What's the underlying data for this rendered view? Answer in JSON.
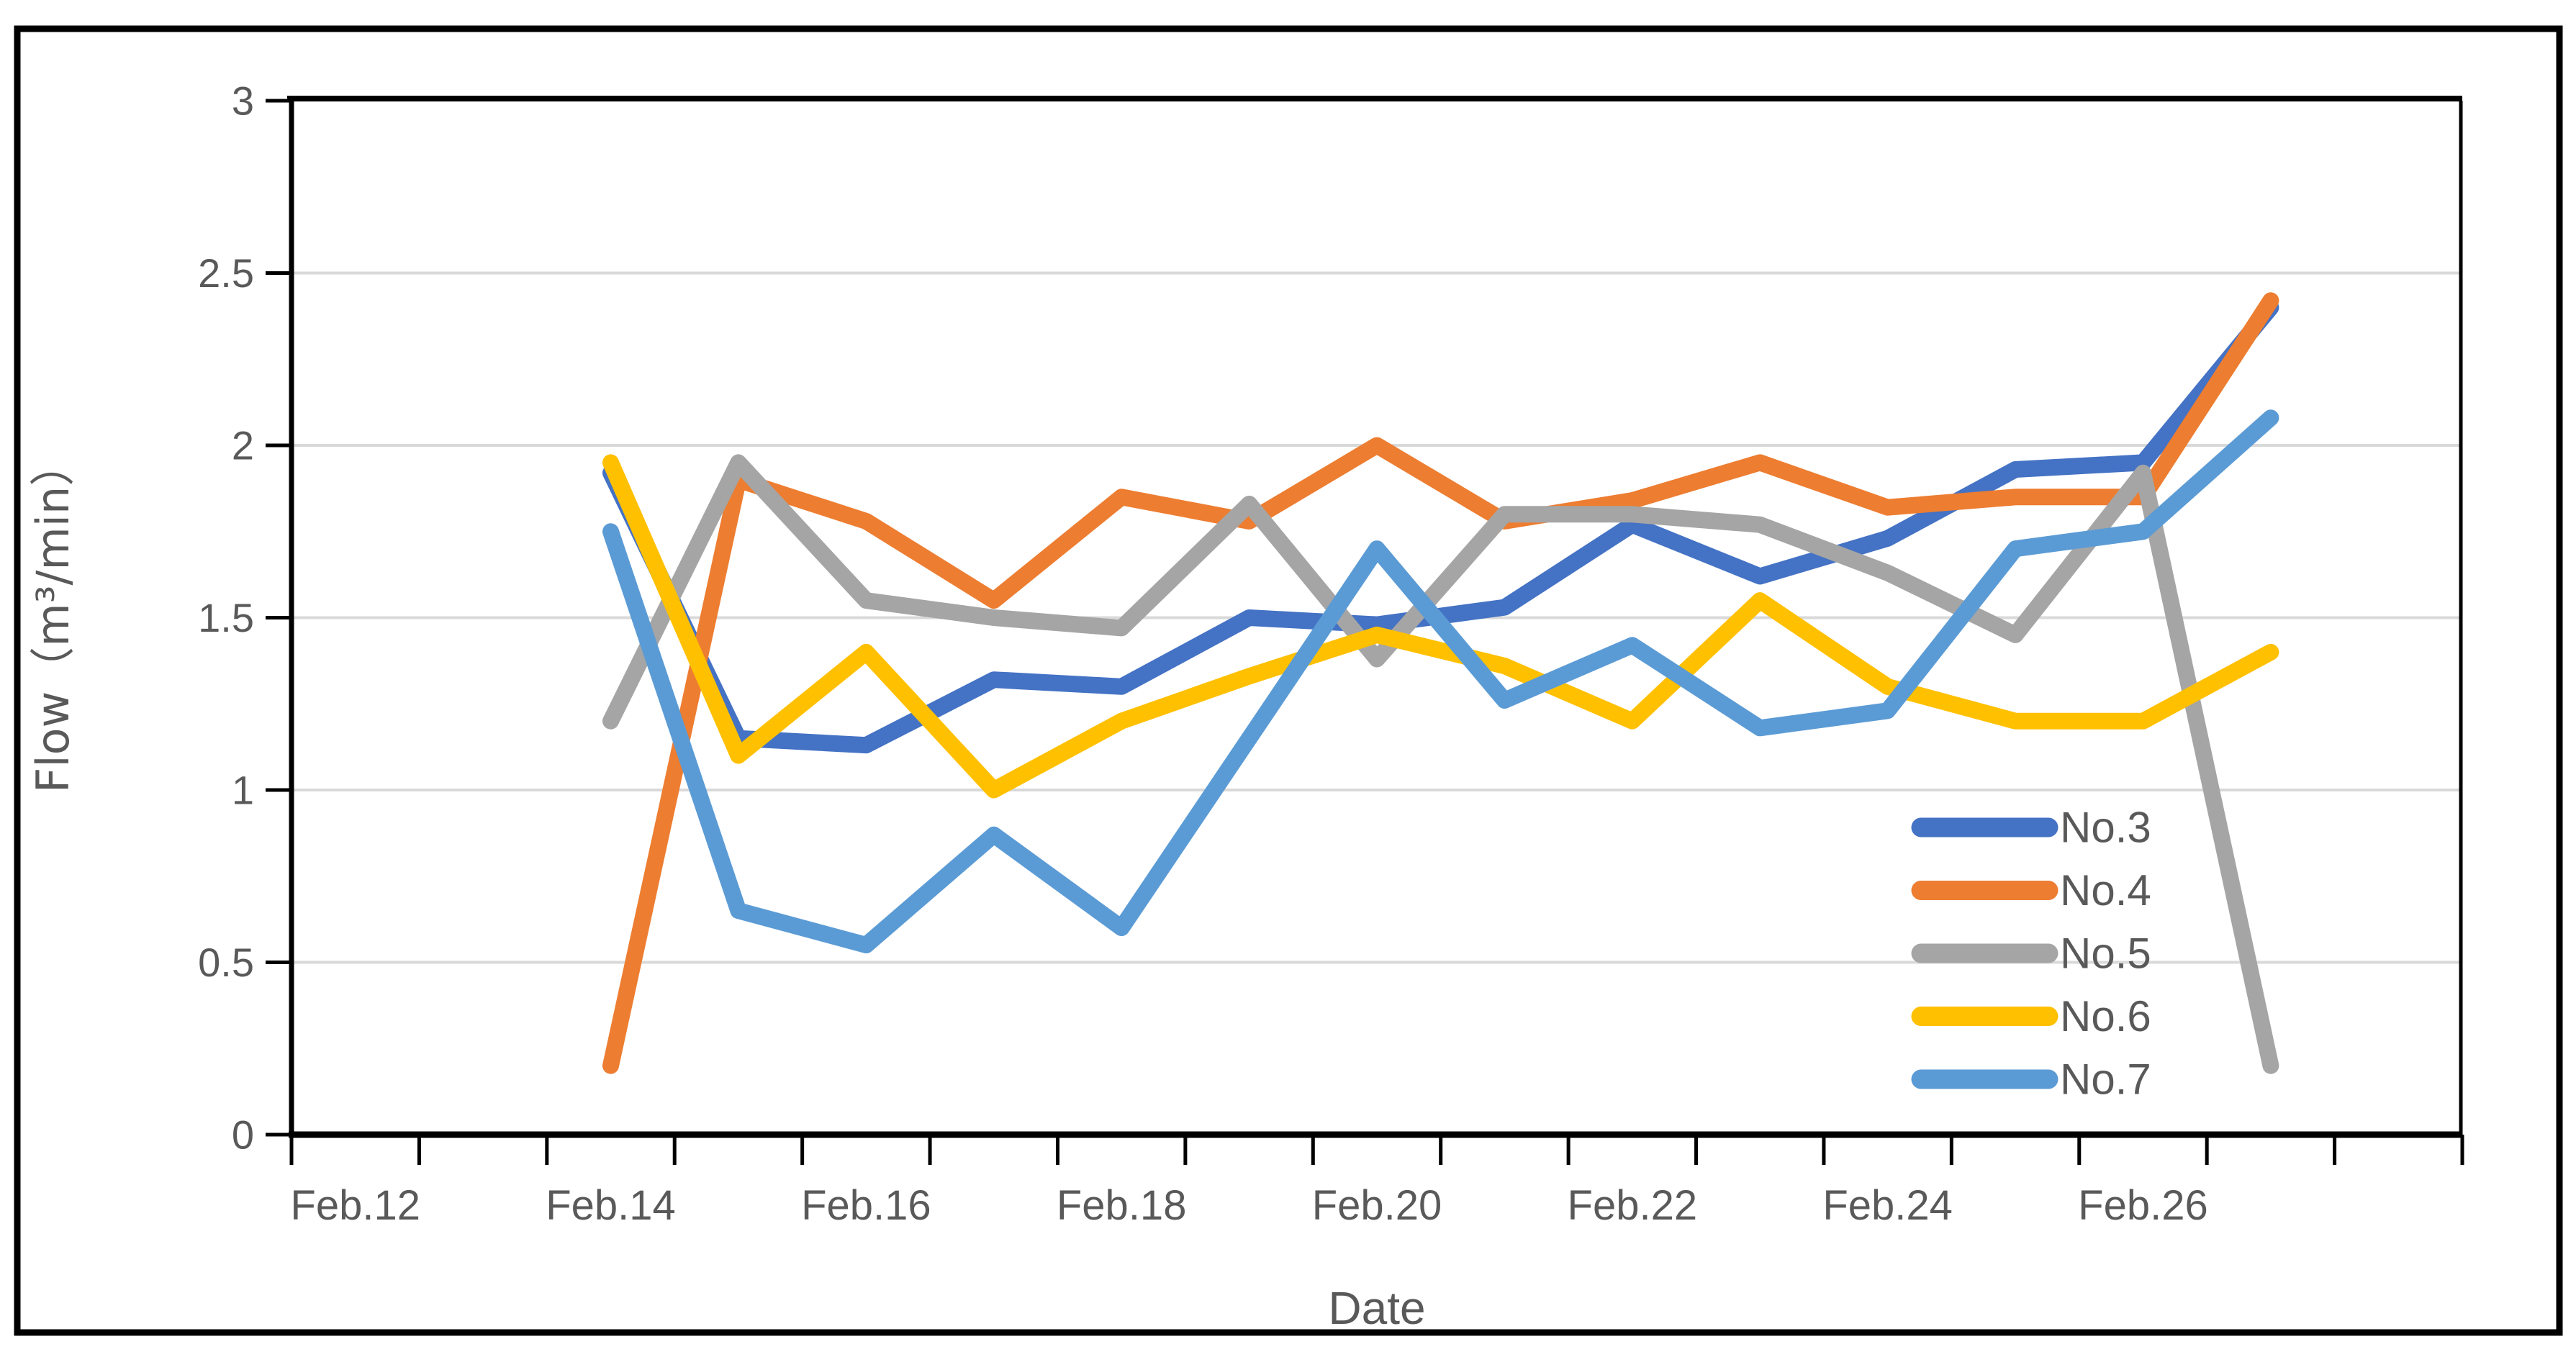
{
  "page": {
    "background_color": "#FFFFFF",
    "outer_border_color": "#000000"
  },
  "chart_data": {
    "type": "line",
    "title": "",
    "xlabel": "Date",
    "ylabel": "Flow（m³/min）",
    "ylim": [
      0,
      3
    ],
    "y_tick_labels": [
      "0",
      "0.5",
      "1",
      "1.5",
      "2",
      "2.5",
      "3"
    ],
    "y_tick_values": [
      0,
      0.5,
      1,
      1.5,
      2,
      2.5,
      3
    ],
    "x_slot_count": 17,
    "x_tick_labels": [
      {
        "text": "Feb.12",
        "slot": 0
      },
      {
        "text": "Feb.14",
        "slot": 2
      },
      {
        "text": "Feb.16",
        "slot": 4
      },
      {
        "text": "Feb.18",
        "slot": 6
      },
      {
        "text": "Feb.20",
        "slot": 8
      },
      {
        "text": "Feb.22",
        "slot": 10
      },
      {
        "text": "Feb.24",
        "slot": 12
      },
      {
        "text": "Feb.26",
        "slot": 14
      }
    ],
    "categories": [
      "Feb.14",
      "Feb.15",
      "Feb.16",
      "Feb.17",
      "Feb.18",
      "Feb.19",
      "Feb.20",
      "Feb.21",
      "Feb.22",
      "Feb.23",
      "Feb.24",
      "Feb.25",
      "Feb.26",
      "Feb.27"
    ],
    "start_slot": 2,
    "grid": true,
    "gridline_color": "#D9D9D9",
    "axis_line_color": "#000000",
    "axis_text_color": "#595959",
    "legend_position": "right-middle",
    "series": [
      {
        "name": "No.3",
        "color": "#4472C4",
        "values": [
          1.92,
          1.15,
          1.13,
          1.32,
          1.3,
          1.5,
          1.48,
          1.53,
          1.77,
          1.62,
          1.73,
          1.93,
          1.95,
          2.4
        ]
      },
      {
        "name": "No.4",
        "color": "#ED7D31",
        "values": [
          0.2,
          1.9,
          1.78,
          1.55,
          1.85,
          1.78,
          2.0,
          1.78,
          1.84,
          1.95,
          1.82,
          1.85,
          1.85,
          2.42
        ]
      },
      {
        "name": "No.5",
        "color": "#A5A5A5",
        "values": [
          1.2,
          1.95,
          1.55,
          1.5,
          1.47,
          1.83,
          1.38,
          1.8,
          1.8,
          1.77,
          1.63,
          1.45,
          1.92,
          0.2
        ]
      },
      {
        "name": "No.6",
        "color": "#FFC000",
        "values": [
          1.95,
          1.1,
          1.4,
          1.0,
          1.2,
          1.33,
          1.45,
          1.36,
          1.2,
          1.55,
          1.3,
          1.2,
          1.2,
          1.4
        ]
      },
      {
        "name": "No.7",
        "color": "#5B9BD5",
        "values": [
          1.75,
          0.65,
          0.55,
          0.87,
          0.6,
          1.15,
          1.7,
          1.26,
          1.42,
          1.18,
          1.23,
          1.7,
          1.75,
          2.08
        ]
      }
    ]
  }
}
